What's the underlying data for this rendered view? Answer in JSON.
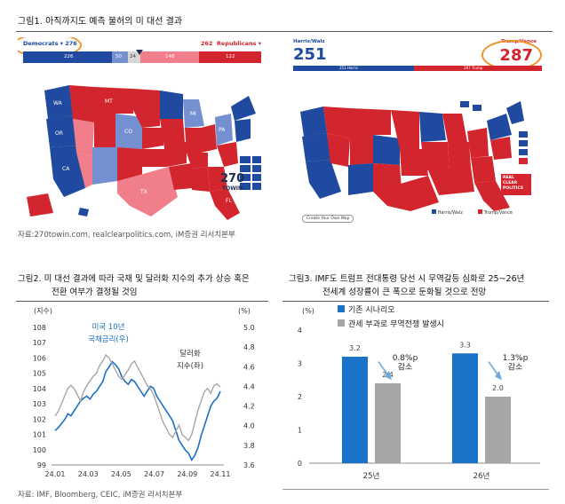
{
  "figure1": {
    "title": "그림1.  아직까지도 예측 불허의 미 대선 결과",
    "source": "자료:270towin.com, realclearpolitics.com, iM증권 리서치본부",
    "left_map": {
      "dem_label": "Democrats",
      "dem_total": "276",
      "rep_label": "Republicans",
      "rep_total": "262",
      "bar_segments": [
        "226",
        "50",
        "24",
        "148",
        "122"
      ],
      "brand": "270",
      "brand_sub": "TOWIN"
    },
    "right_map": {
      "dem_label": "Harris/Walz",
      "dem_total": "251",
      "rep_label": "Trump/Vance",
      "rep_total": "287",
      "dem_bar": "251 Harris",
      "rep_bar": "287 Trump",
      "legend_dem": "Harris/Walz",
      "legend_rep": "Trump/Vance",
      "button": "Create Your Own Map",
      "brand": "REAL CLEAR POLITICS"
    },
    "colors": {
      "dem": "#1f4aa0",
      "dem_lean": "#7590d0",
      "rep": "#d3252d",
      "rep_lean": "#f07e8b",
      "highlight": "#f0932b"
    }
  },
  "figure2": {
    "title_line1": "그림2.  미 대선 결과에 따라 국채 및 달러화 지수의 추가 상승 혹은",
    "title_line2": "전환 여부가 결정될 것임",
    "source": "자료: IMF, Bloomberg, CEIC, iM증권 리서치본부",
    "chart_data": {
      "type": "line",
      "left_unit": "(지수)",
      "right_unit": "(%)",
      "left_ticks": [
        "108",
        "107",
        "106",
        "105",
        "104",
        "103",
        "102",
        "101",
        "100",
        "99"
      ],
      "right_ticks": [
        "5.0",
        "4.8",
        "4.6",
        "4.4",
        "4.2",
        "4.0",
        "3.8",
        "3.6"
      ],
      "x_ticks": [
        "24.01",
        "24.03",
        "24.05",
        "24.07",
        "24.09",
        "24.11"
      ],
      "ylim_left": [
        99,
        108
      ],
      "ylim_right": [
        3.6,
        5.0
      ],
      "series": [
        {
          "name": "미국 10년 국채금리(우)",
          "name_line1": "미국 10년",
          "name_line2": "국채금리(우)",
          "color": "#1a6fc4",
          "axis": "right",
          "values": [
            3.95,
            3.98,
            4.02,
            4.06,
            4.12,
            4.1,
            4.15,
            4.2,
            4.25,
            4.28,
            4.3,
            4.27,
            4.32,
            4.35,
            4.4,
            4.45,
            4.55,
            4.6,
            4.65,
            4.62,
            4.58,
            4.5,
            4.45,
            4.42,
            4.47,
            4.45,
            4.4,
            4.35,
            4.3,
            4.35,
            4.4,
            4.38,
            4.3,
            4.25,
            4.2,
            4.15,
            4.1,
            4.05,
            3.95,
            3.85,
            3.8,
            3.75,
            3.72,
            3.65,
            3.7,
            3.78,
            3.9,
            4.0,
            4.1,
            4.2,
            4.25,
            4.28,
            4.35
          ]
        },
        {
          "name": "달러화 지수(좌)",
          "name_line1": "달러화",
          "name_line2": "지수(좌)",
          "color": "#a6a6a6",
          "axis": "left",
          "values": [
            102.2,
            102.5,
            103.0,
            103.5,
            104.0,
            104.2,
            104.0,
            103.6,
            103.2,
            103.8,
            104.2,
            104.5,
            104.8,
            105.0,
            105.5,
            105.8,
            106.2,
            106.0,
            105.6,
            105.2,
            104.8,
            104.6,
            104.9,
            105.2,
            105.6,
            105.8,
            105.4,
            105.0,
            104.6,
            104.2,
            104.0,
            103.6,
            103.0,
            102.4,
            101.8,
            101.4,
            101.0,
            100.8,
            101.2,
            101.6,
            101.0,
            100.8,
            100.6,
            101.0,
            101.8,
            102.6,
            103.2,
            103.8,
            104.0,
            103.7,
            104.2,
            104.3,
            104.1
          ]
        }
      ]
    }
  },
  "figure3": {
    "title_line1": "그림3.  IMF도 트럼프 전대통령 당선 시 무역갈등 심화로 25~26년",
    "title_line2": "전세계 성장률이 큰 폭으로 둔화될 것으로 전망",
    "chart_data": {
      "type": "bar",
      "unit": "(%)",
      "categories": [
        "25년",
        "26년"
      ],
      "ylim": [
        0,
        4
      ],
      "y_ticks": [
        "4",
        "3",
        "2",
        "1",
        "0"
      ],
      "series": [
        {
          "name": "기존 시나리오",
          "color": "#1a73c8",
          "values": [
            3.2,
            3.3
          ],
          "labels": [
            "3.2",
            "3.3"
          ]
        },
        {
          "name": "관세 부과로 무역전쟁 발생시",
          "color": "#a6a6a6",
          "values": [
            2.4,
            2.0
          ],
          "labels": [
            "2.4",
            "2.0"
          ]
        }
      ],
      "annotations": [
        {
          "line1": "0.8%p",
          "line2": "감소"
        },
        {
          "line1": "1.3%p",
          "line2": "감소"
        }
      ]
    }
  }
}
